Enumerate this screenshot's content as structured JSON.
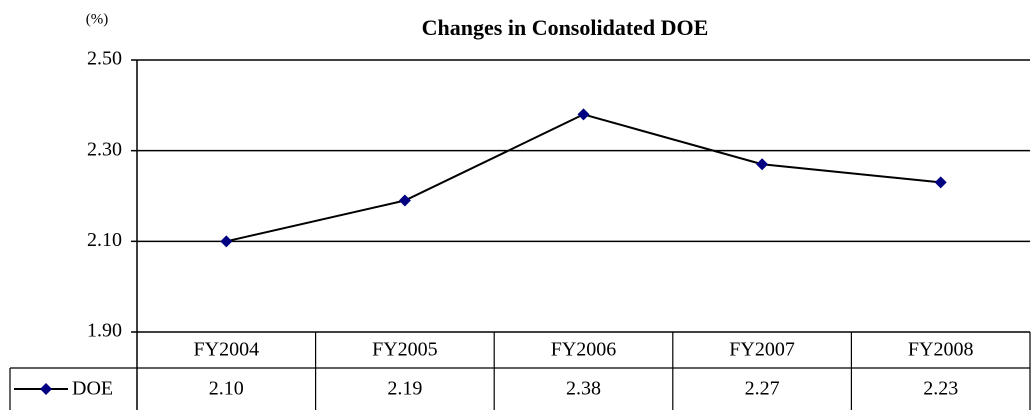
{
  "chart_data": {
    "type": "line",
    "title": "Changes in Consolidated DOE",
    "y_label": "(%)",
    "categories": [
      "FY2004",
      "FY2005",
      "FY2006",
      "FY2007",
      "FY2008"
    ],
    "series": [
      {
        "name": "DOE",
        "color": "#000080",
        "line_color": "#000000",
        "values": [
          2.1,
          2.19,
          2.38,
          2.27,
          2.23
        ],
        "value_labels": [
          "2.10",
          "2.19",
          "2.38",
          "2.27",
          "2.23"
        ]
      }
    ],
    "ylim": [
      1.9,
      2.5
    ],
    "yticks": [
      {
        "value": 1.9,
        "label": "1.90"
      },
      {
        "value": 2.1,
        "label": "2.10"
      },
      {
        "value": 2.3,
        "label": "2.30"
      },
      {
        "value": 2.5,
        "label": "2.50"
      }
    ],
    "grid": true,
    "data_table": true
  }
}
